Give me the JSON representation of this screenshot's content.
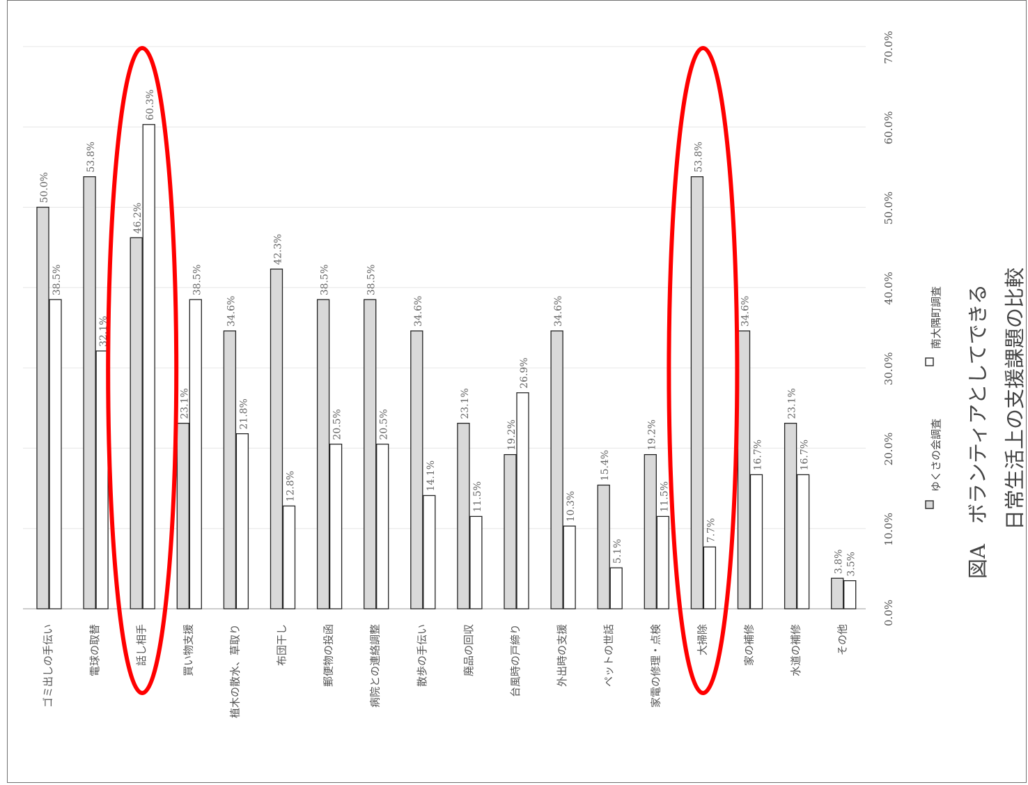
{
  "chart_data": {
    "type": "bar",
    "orientation": "rotated",
    "categories": [
      "ゴミ出しの手伝い",
      "電球の取替",
      "話し相手",
      "買い物支援",
      "植木の散水、草取り",
      "布団干し",
      "郵便物の投函",
      "病院との連絡調整",
      "散歩の手伝い",
      "廃品の回収",
      "台風時の戸締り",
      "外出時の支援",
      "ペットの世話",
      "家電の修理・点検",
      "大掃除",
      "家の補修",
      "水道の補修",
      "その他"
    ],
    "series": [
      {
        "name": "ゆくさの会調査",
        "values": [
          50.0,
          53.8,
          46.2,
          23.1,
          34.6,
          42.3,
          38.5,
          38.5,
          34.6,
          23.1,
          19.2,
          34.6,
          15.4,
          19.2,
          53.8,
          34.6,
          23.1,
          3.8
        ],
        "labels": [
          "50.0%",
          "53.8%",
          "46.2%",
          "23.1%",
          "34.6%",
          "42.3%",
          "38.5%",
          "38.5%",
          "34.6%",
          "23.1%",
          "19.2%",
          "34.6%",
          "15.4%",
          "19.2%",
          "53.8%",
          "34.6%",
          "23.1%",
          "3.8%"
        ],
        "color": "#d9d9d9"
      },
      {
        "name": "南大隅町調査",
        "values": [
          38.5,
          32.1,
          60.3,
          38.5,
          21.8,
          12.8,
          20.5,
          20.5,
          14.1,
          11.5,
          26.9,
          10.3,
          5.1,
          11.5,
          7.7,
          16.7,
          16.7,
          3.5
        ],
        "labels": [
          "38.5%",
          "32.1%",
          "60.3%",
          "38.5%",
          "21.8%",
          "12.8%",
          "20.5%",
          "20.5%",
          "14.1%",
          "11.5%",
          "26.9%",
          "10.3%",
          "5.1%",
          "11.5%",
          "7.7%",
          "16.7%",
          "16.7%",
          "3.5%"
        ],
        "color": "#ffffff"
      }
    ],
    "ticks": [
      "0.0%",
      "10.0%",
      "20.0%",
      "30.0%",
      "40.0%",
      "50.0%",
      "60.0%",
      "70.0%"
    ],
    "ylim": [
      0,
      70
    ],
    "grid": true,
    "legend_placement": "right",
    "highlighted_categories": [
      "話し相手",
      "大掃除"
    ],
    "highlight_color": "#ff0000",
    "title_line1": "図A　ボランティアとしてできる",
    "title_line2": "日常生活上の支援課題の比較"
  }
}
